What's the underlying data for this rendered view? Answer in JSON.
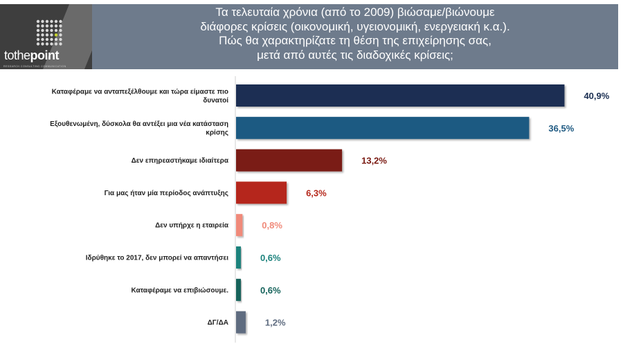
{
  "logo": {
    "name_part1": "tothe",
    "name_part2": "point",
    "tagline": "RESEARCH CONSULTING COMMUNICATION"
  },
  "title_lines": [
    "Τα τελευταία χρόνια (από το 2009) βιώσαμε/βιώνουμε",
    "διάφορες κρίσεις (οικονομική, υγειονομική, ενεργειακή κ.α.).",
    "Πώς θα χαρακτηρίζατε τη θέση της επιχείρησης σας,",
    "μετά από αυτές τις διαδοχικές κρίσεις;"
  ],
  "chart_data": {
    "type": "bar",
    "orientation": "horizontal",
    "title": "",
    "xlabel": "",
    "ylabel": "",
    "categories": [
      [
        "Καταφέραμε να ανταπεξέλθουμε και τώρα είμαστε πιο",
        "δυνατοί"
      ],
      [
        "Εξουθενωμένη, δύσκολα θα αντέξει μια νέα κατάσταση",
        "κρίσης"
      ],
      [
        "Δεν επηρεαστήκαμε ιδιαίτερα"
      ],
      [
        "Για μας ήταν μία περίοδος ανάπτυξης"
      ],
      [
        "Δεν υπήρχε η εταιρεία"
      ],
      [
        "Ιδρύθηκε το 2017, δεν μπορεί να απαντήσει"
      ],
      [
        "Καταφέραμε να επιβιώσουμε."
      ],
      [
        "ΔΓ/ΔΑ"
      ]
    ],
    "values": [
      40.9,
      36.5,
      13.2,
      6.3,
      0.8,
      0.6,
      0.6,
      1.2
    ],
    "value_labels": [
      "40,9%",
      "36,5%",
      "13,2%",
      "6,3%",
      "0,8%",
      "0,6%",
      "0,6%",
      "1,2%"
    ],
    "bar_colors": [
      "#1b2f52",
      "#1f5a82",
      "#7a1a12",
      "#b5271a",
      "#f08a7a",
      "#1c827c",
      "#14625a",
      "#5f6c80"
    ],
    "label_colors": [
      "#1b2f52",
      "#1f5a82",
      "#7a1a12",
      "#b5271a",
      "#f08a7a",
      "#1c827c",
      "#14625a",
      "#5f6c80"
    ],
    "xlim": [
      0,
      45
    ],
    "grid": false,
    "legend": "none"
  }
}
